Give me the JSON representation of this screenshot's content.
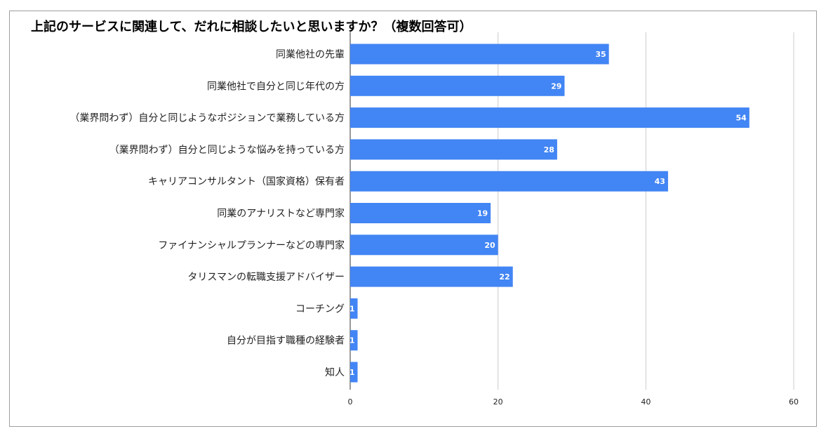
{
  "chart_data": {
    "type": "bar",
    "orientation": "horizontal",
    "title": "上記のサービスに関連して、だれに相談したいと思いますか？（複数回答可）",
    "categories": [
      "同業他社の先輩",
      "同業他社で自分と同じ年代の方",
      "（業界問わず）自分と同じようなポジションで業務している方",
      "（業界問わず）自分と同じような悩みを持っている方",
      "キャリアコンサルタント（国家資格）保有者",
      "同業のアナリストなど専門家",
      "ファイナンシャルプランナーなどの専門家",
      "タリスマンの転職支援アドバイザー",
      "コーチング",
      "自分が目指す職種の経験者",
      "知人"
    ],
    "values": [
      35,
      29,
      54,
      28,
      43,
      19,
      20,
      22,
      1,
      1,
      1
    ],
    "xlim": [
      0,
      60
    ],
    "xticks": [
      0,
      20,
      40,
      60
    ],
    "grid": true,
    "legend": "none",
    "bar_color": "#4285f4",
    "grid_color": "#cccccc",
    "axis_color": "#333333"
  }
}
